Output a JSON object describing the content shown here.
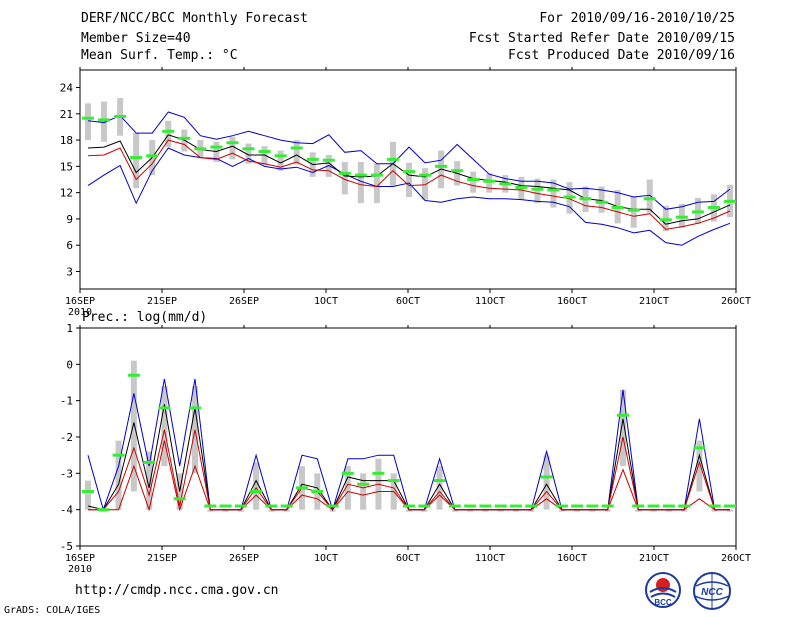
{
  "header": {
    "title": "DERF/NCC/BCC Monthly Forecast",
    "member_size": "Member Size=40",
    "variable": "Mean Surf. Temp.: °C",
    "forecast_period": "For 2010/09/16-2010/10/25",
    "started_refer_date": "Fcst Started Refer Date 2010/09/15",
    "produced_date": "Fcst Produced Date 2010/09/16"
  },
  "footer": {
    "url": "http://cmdp.ncc.cma.gov.cn",
    "credit": "GrADS: COLA/IGES",
    "logo_bcc": "BCC",
    "logo_ncc": "NCC"
  },
  "colors": {
    "max": "#0000cc",
    "mean": "#000000",
    "min": "#cc0000",
    "green": "#33ee33",
    "box": "#c8c8c8"
  },
  "chart_data": [
    {
      "type": "line",
      "title": "Mean Surf. Temp.: °C",
      "ylabel": "°C",
      "ylim": [
        1,
        26
      ],
      "yticks": [
        3,
        6,
        9,
        12,
        15,
        18,
        21,
        24
      ],
      "xticks": [
        {
          "day": 0,
          "label": "16SEP",
          "sub": "2010"
        },
        {
          "day": 5,
          "label": "21SEP"
        },
        {
          "day": 10,
          "label": "26SEP"
        },
        {
          "day": 15,
          "label": "1OCT"
        },
        {
          "day": 20,
          "label": "6OCT"
        },
        {
          "day": 25,
          "label": "11OCT"
        },
        {
          "day": 30,
          "label": "16OCT"
        },
        {
          "day": 35,
          "label": "21OCT"
        },
        {
          "day": 40,
          "label": "26OCT"
        }
      ],
      "series": [
        {
          "name": "ensemble max",
          "values": [
            12.8,
            14.0,
            15.1,
            10.8,
            14.5,
            17.1,
            16.3,
            16.0,
            15.9,
            15.0,
            15.9,
            15.0,
            14.7,
            14.9,
            14.3,
            15.1,
            14.1,
            13.3,
            12.7,
            12.7,
            13.1,
            11.1,
            10.9,
            11.3,
            11.5,
            11.3,
            11.3,
            11.2,
            11.0,
            10.9,
            10.4,
            8.6,
            8.4,
            8.0,
            7.4,
            7.7,
            6.3,
            6.0,
            7.0,
            7.8,
            8.5
          ]
        },
        {
          "name": "ensemble mean",
          "values": [
            17.1,
            17.2,
            17.9,
            14.3,
            16.0,
            18.6,
            18.0,
            16.9,
            16.7,
            17.3,
            16.3,
            16.3,
            15.4,
            16.3,
            15.2,
            15.4,
            13.9,
            13.8,
            13.9,
            15.3,
            14.0,
            13.8,
            14.7,
            14.2,
            13.6,
            13.4,
            13.2,
            12.8,
            12.7,
            12.5,
            12.3,
            11.3,
            11.1,
            10.4,
            10.1,
            10.1,
            8.4,
            8.8,
            9.0,
            9.8,
            10.6
          ]
        },
        {
          "name": "ensemble min",
          "values": [
            16.2,
            16.3,
            17.1,
            13.5,
            15.3,
            18.0,
            17.5,
            16.0,
            15.8,
            16.5,
            15.6,
            15.3,
            14.9,
            15.5,
            14.6,
            14.5,
            13.5,
            12.9,
            12.7,
            14.5,
            12.8,
            12.9,
            14.0,
            13.3,
            12.8,
            12.5,
            12.4,
            12.3,
            11.9,
            11.6,
            11.3,
            10.5,
            10.3,
            9.8,
            9.3,
            9.6,
            7.8,
            8.1,
            8.5,
            9.1,
            9.9
          ]
        },
        {
          "name": "ensemble upper",
          "values": [
            20.2,
            20.0,
            20.8,
            18.8,
            18.8,
            21.2,
            20.6,
            18.5,
            18.1,
            18.5,
            19.0,
            18.5,
            18.0,
            17.7,
            17.6,
            18.6,
            16.6,
            16.8,
            15.3,
            15.3,
            17.2,
            15.4,
            15.7,
            17.5,
            15.8,
            14.1,
            13.6,
            13.3,
            13.3,
            13.1,
            12.4,
            12.5,
            12.3,
            12.0,
            11.5,
            11.7,
            10.1,
            10.4,
            10.9,
            11.0,
            12.4
          ]
        },
        {
          "name": "green marker",
          "values": [
            20.5,
            20.3,
            20.7,
            16.0,
            16.2,
            19.0,
            18.2,
            17.0,
            17.2,
            17.7,
            17.0,
            16.7,
            16.2,
            17.1,
            15.8,
            15.7,
            14.2,
            14.0,
            14.0,
            15.8,
            14.4,
            14.0,
            15.0,
            14.5,
            13.5,
            13.3,
            13.0,
            12.6,
            12.4,
            12.3,
            11.5,
            11.3,
            10.9,
            10.3,
            10.0,
            11.3,
            8.9,
            9.2,
            9.8,
            10.3,
            11.0
          ]
        }
      ],
      "boxes": [
        {
          "min": 18.0,
          "max": 22.2
        },
        {
          "min": 17.8,
          "max": 22.4
        },
        {
          "min": 18.5,
          "max": 22.8
        },
        {
          "min": 12.5,
          "max": 18.8
        },
        {
          "min": 14.0,
          "max": 18.0
        },
        {
          "min": 17.2,
          "max": 20.2
        },
        {
          "min": 16.7,
          "max": 19.2
        },
        {
          "min": 16.0,
          "max": 18.0
        },
        {
          "min": 15.5,
          "max": 17.8
        },
        {
          "min": 15.8,
          "max": 18.4
        },
        {
          "min": 15.3,
          "max": 17.6
        },
        {
          "min": 15.1,
          "max": 17.3
        },
        {
          "min": 14.5,
          "max": 16.8
        },
        {
          "min": 15.2,
          "max": 18.0
        },
        {
          "min": 13.8,
          "max": 16.6
        },
        {
          "min": 13.8,
          "max": 16.3
        },
        {
          "min": 11.8,
          "max": 15.5
        },
        {
          "min": 10.8,
          "max": 15.5
        },
        {
          "min": 10.8,
          "max": 15.3
        },
        {
          "min": 12.8,
          "max": 17.8
        },
        {
          "min": 11.5,
          "max": 15.4
        },
        {
          "min": 11.2,
          "max": 14.8
        },
        {
          "min": 12.5,
          "max": 16.8
        },
        {
          "min": 12.8,
          "max": 15.6
        },
        {
          "min": 12.0,
          "max": 14.4
        },
        {
          "min": 12.0,
          "max": 14.2
        },
        {
          "min": 12.0,
          "max": 14.0
        },
        {
          "min": 11.2,
          "max": 13.8
        },
        {
          "min": 10.8,
          "max": 13.6
        },
        {
          "min": 10.3,
          "max": 13.5
        },
        {
          "min": 9.6,
          "max": 13.2
        },
        {
          "min": 9.8,
          "max": 12.7
        },
        {
          "min": 9.7,
          "max": 12.7
        },
        {
          "min": 8.5,
          "max": 12.3
        },
        {
          "min": 8.0,
          "max": 11.6
        },
        {
          "min": 9.7,
          "max": 13.5
        },
        {
          "min": 7.6,
          "max": 10.5
        },
        {
          "min": 8.0,
          "max": 10.7
        },
        {
          "min": 8.4,
          "max": 11.4
        },
        {
          "min": 8.7,
          "max": 11.8
        },
        {
          "min": 9.2,
          "max": 12.9
        }
      ]
    },
    {
      "type": "line",
      "title": "Prec.: log(mm/d)",
      "ylabel": "log(mm/d)",
      "ylim": [
        -5,
        1
      ],
      "yticks": [
        -5,
        -4,
        -3,
        -2,
        -1,
        0,
        1
      ],
      "xticks": [
        {
          "day": 0,
          "label": "16SEP",
          "sub": "2010"
        },
        {
          "day": 5,
          "label": "21SEP"
        },
        {
          "day": 10,
          "label": "26SEP"
        },
        {
          "day": 15,
          "label": "1OCT"
        },
        {
          "day": 20,
          "label": "6OCT"
        },
        {
          "day": 25,
          "label": "11OCT"
        },
        {
          "day": 30,
          "label": "16OCT"
        },
        {
          "day": 35,
          "label": "21OCT"
        },
        {
          "day": 40,
          "label": "26OCT"
        }
      ],
      "series": [
        {
          "name": "ensemble max",
          "values": [
            -2.5,
            -4.0,
            -2.8,
            -0.8,
            -2.8,
            -0.4,
            -2.8,
            -0.4,
            -4.0,
            -4.0,
            -4.0,
            -2.5,
            -4.0,
            -4.0,
            -2.5,
            -2.6,
            -4.0,
            -2.6,
            -2.6,
            -2.5,
            -2.5,
            -4.0,
            -4.0,
            -2.6,
            -4.0,
            -4.0,
            -4.0,
            -4.0,
            -4.0,
            -4.0,
            -2.4,
            -4.0,
            -4.0,
            -4.0,
            -4.0,
            -0.7,
            -4.0,
            -4.0,
            -4.0,
            -4.0,
            -1.5,
            -4.0,
            -4.0
          ]
        },
        {
          "name": "ensemble mean",
          "values": [
            -3.9,
            -4.0,
            -3.3,
            -1.6,
            -3.4,
            -1.1,
            -3.5,
            -1.2,
            -4.0,
            -4.0,
            -4.0,
            -3.2,
            -4.0,
            -4.0,
            -3.3,
            -3.4,
            -4.0,
            -3.1,
            -3.2,
            -3.2,
            -3.2,
            -4.0,
            -4.0,
            -3.3,
            -4.0,
            -4.0,
            -4.0,
            -4.0,
            -4.0,
            -4.0,
            -3.3,
            -4.0,
            -4.0,
            -4.0,
            -4.0,
            -1.5,
            -4.0,
            -4.0,
            -4.0,
            -4.0,
            -2.5,
            -4.0,
            -4.0
          ]
        },
        {
          "name": "ensemble min",
          "values": [
            -4.0,
            -4.0,
            -3.5,
            -2.3,
            -3.6,
            -1.8,
            -3.9,
            -1.8,
            -4.0,
            -4.0,
            -4.0,
            -3.4,
            -4.0,
            -4.0,
            -3.4,
            -3.5,
            -4.0,
            -3.3,
            -3.4,
            -3.3,
            -3.4,
            -4.0,
            -4.0,
            -3.5,
            -4.0,
            -4.0,
            -4.0,
            -4.0,
            -4.0,
            -4.0,
            -3.5,
            -4.0,
            -4.0,
            -4.0,
            -4.0,
            -2.0,
            -4.0,
            -4.0,
            -4.0,
            -4.0,
            -2.7,
            -4.0,
            -4.0
          ]
        },
        {
          "name": "ensemble lower",
          "values": [
            -4.0,
            -4.0,
            -4.0,
            -2.8,
            -4.0,
            -2.1,
            -4.0,
            -2.8,
            -4.0,
            -4.0,
            -4.0,
            -3.6,
            -4.0,
            -4.0,
            -3.6,
            -3.7,
            -4.0,
            -3.5,
            -3.6,
            -3.5,
            -3.5,
            -4.0,
            -4.0,
            -3.6,
            -4.0,
            -4.0,
            -4.0,
            -4.0,
            -4.0,
            -4.0,
            -3.7,
            -4.0,
            -4.0,
            -4.0,
            -4.0,
            -2.9,
            -4.0,
            -4.0,
            -4.0,
            -4.0,
            -3.7,
            -4.0,
            -4.0
          ]
        },
        {
          "name": "green marker",
          "values": [
            -3.5,
            -4.0,
            -2.5,
            -0.3,
            -2.7,
            -1.2,
            -3.7,
            -1.2,
            -3.9,
            -3.9,
            -3.9,
            -3.5,
            -3.9,
            -3.9,
            -3.4,
            -3.5,
            -3.9,
            -3.0,
            -3.3,
            -3.0,
            -3.2,
            -3.9,
            -3.9,
            -3.2,
            -3.9,
            -3.9,
            -3.9,
            -3.9,
            -3.9,
            -3.9,
            -3.1,
            -3.9,
            -3.9,
            -3.9,
            -3.9,
            -1.4,
            -3.9,
            -3.9,
            -3.9,
            -3.9,
            -2.3,
            -3.9,
            -3.9
          ]
        }
      ],
      "boxes": [
        {
          "min": -4.0,
          "max": -3.2
        },
        {
          "min": -4.0,
          "max": -4.0
        },
        {
          "min": -4.0,
          "max": -2.1
        },
        {
          "min": -3.5,
          "max": 0.1
        },
        {
          "min": -4.0,
          "max": -2.4
        },
        {
          "min": -2.8,
          "max": -0.6
        },
        {
          "min": -4.0,
          "max": -3.0
        },
        {
          "min": -3.0,
          "max": -0.6
        },
        {
          "min": -4.0,
          "max": -4.0
        },
        {
          "min": -4.0,
          "max": -4.0
        },
        {
          "min": -4.0,
          "max": -4.0
        },
        {
          "min": -4.0,
          "max": -2.7
        },
        {
          "min": -4.0,
          "max": -4.0
        },
        {
          "min": -4.0,
          "max": -4.0
        },
        {
          "min": -4.0,
          "max": -2.8
        },
        {
          "min": -4.0,
          "max": -3.0
        },
        {
          "min": -4.0,
          "max": -4.0
        },
        {
          "min": -4.0,
          "max": -2.8
        },
        {
          "min": -4.0,
          "max": -3.0
        },
        {
          "min": -4.0,
          "max": -2.6
        },
        {
          "min": -4.0,
          "max": -3.0
        },
        {
          "min": -4.0,
          "max": -4.0
        },
        {
          "min": -4.0,
          "max": -4.0
        },
        {
          "min": -4.0,
          "max": -2.8
        },
        {
          "min": -4.0,
          "max": -4.0
        },
        {
          "min": -4.0,
          "max": -4.0
        },
        {
          "min": -4.0,
          "max": -4.0
        },
        {
          "min": -4.0,
          "max": -4.0
        },
        {
          "min": -4.0,
          "max": -4.0
        },
        {
          "min": -4.0,
          "max": -4.0
        },
        {
          "min": -4.0,
          "max": -2.5
        },
        {
          "min": -4.0,
          "max": -4.0
        },
        {
          "min": -4.0,
          "max": -4.0
        },
        {
          "min": -4.0,
          "max": -4.0
        },
        {
          "min": -4.0,
          "max": -4.0
        },
        {
          "min": -2.8,
          "max": -0.7
        },
        {
          "min": -4.0,
          "max": -4.0
        },
        {
          "min": -4.0,
          "max": -4.0
        },
        {
          "min": -4.0,
          "max": -4.0
        },
        {
          "min": -4.0,
          "max": -4.0
        },
        {
          "min": -3.5,
          "max": -2.1
        },
        {
          "min": -4.0,
          "max": -4.0
        },
        {
          "min": -4.0,
          "max": -4.0
        }
      ]
    }
  ]
}
